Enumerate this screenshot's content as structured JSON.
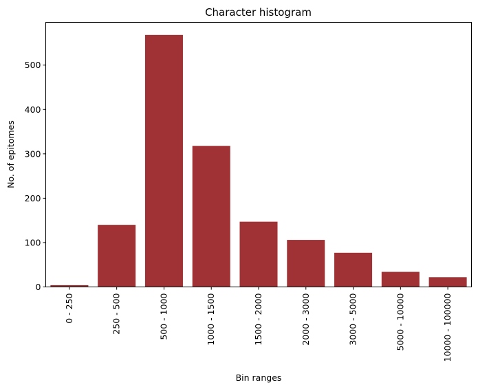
{
  "chart_data": {
    "type": "bar",
    "title": "Character histogram",
    "xlabel": "Bin ranges",
    "ylabel": "No. of epitomes",
    "categories": [
      "0 - 250",
      "250 - 500",
      "500 - 1000",
      "1000 - 1500",
      "1500 - 2000",
      "2000 - 3000",
      "3000 - 5000",
      "5000 - 10000",
      "10000 - 100000"
    ],
    "values": [
      4,
      140,
      568,
      318,
      147,
      106,
      77,
      34,
      22
    ],
    "ylim": [
      0,
      596.4
    ],
    "yticks": [
      0,
      100,
      200,
      300,
      400,
      500
    ],
    "grid": false,
    "bar_color": "#a03134"
  }
}
